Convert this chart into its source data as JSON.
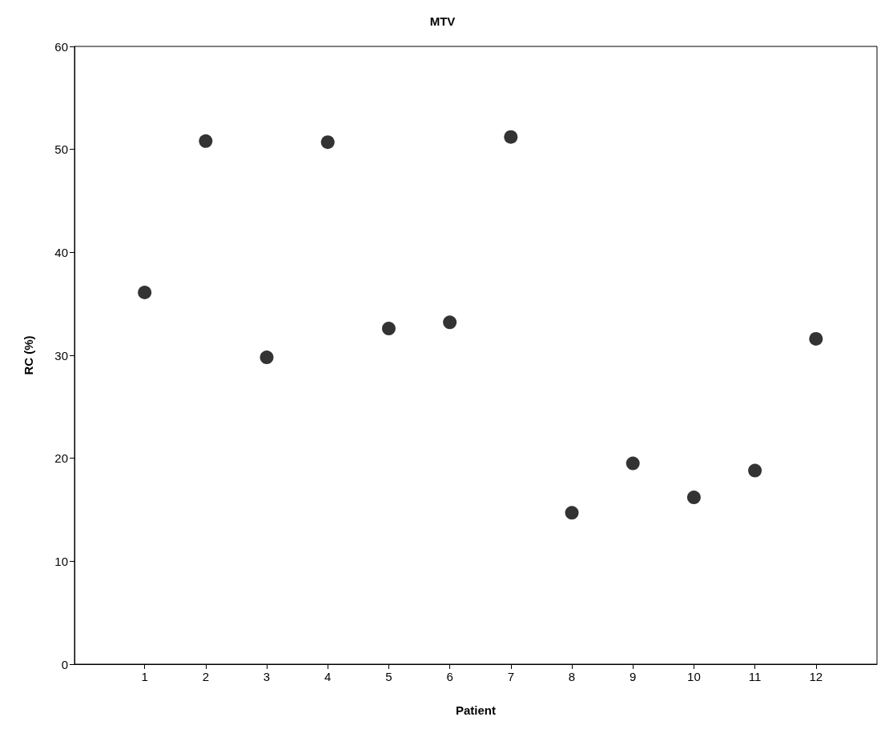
{
  "chart_data": {
    "type": "scatter",
    "title": "MTV",
    "xlabel": "Patient",
    "ylabel": "RC (%)",
    "x": [
      1,
      2,
      3,
      4,
      5,
      6,
      7,
      8,
      9,
      10,
      11,
      12
    ],
    "values": [
      36.1,
      50.8,
      29.8,
      50.7,
      32.6,
      33.2,
      51.2,
      14.7,
      19.5,
      16.2,
      18.8,
      31.6
    ],
    "color": "#000000",
    "marker": "circle",
    "xlim": [
      -0.15,
      13
    ],
    "xticks": [
      1,
      2,
      3,
      4,
      5,
      6,
      7,
      8,
      9,
      10,
      11,
      12
    ],
    "ylim": [
      0,
      60
    ],
    "yticks": [
      0,
      10,
      20,
      30,
      40,
      50,
      60
    ],
    "grid": false
  }
}
